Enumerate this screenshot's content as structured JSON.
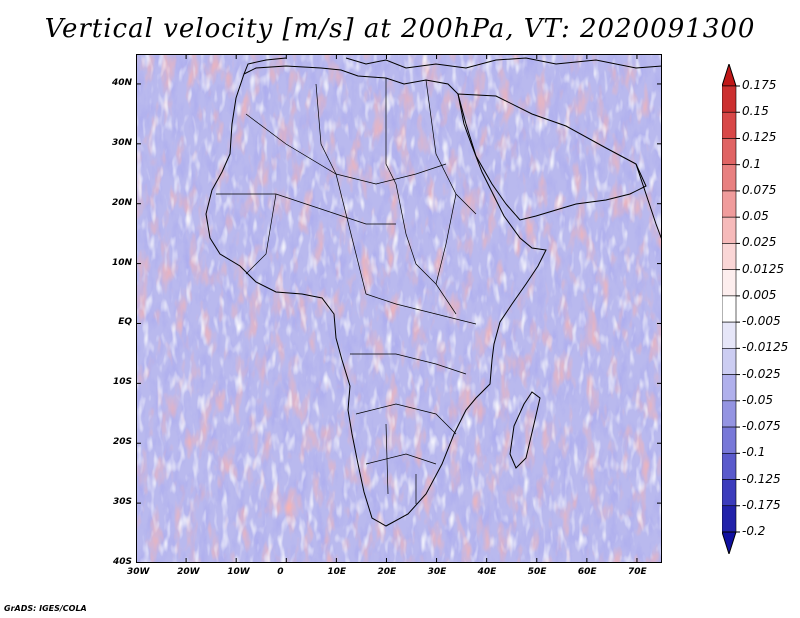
{
  "title": "Vertical velocity [m/s] at 200hPa, VT: 2020091300",
  "credit": "GrADS: IGES/COLA",
  "map": {
    "lon_range": [
      -30,
      75
    ],
    "lat_range": [
      -40,
      45
    ],
    "lat_ticks": [
      {
        "value": 40,
        "label": "40N"
      },
      {
        "value": 30,
        "label": "30N"
      },
      {
        "value": 20,
        "label": "20N"
      },
      {
        "value": 10,
        "label": "10N"
      },
      {
        "value": 0,
        "label": "EQ"
      },
      {
        "value": -10,
        "label": "10S"
      },
      {
        "value": -20,
        "label": "20S"
      },
      {
        "value": -30,
        "label": "30S"
      },
      {
        "value": -40,
        "label": "40S"
      }
    ],
    "lon_ticks": [
      {
        "value": -30,
        "label": "30W"
      },
      {
        "value": -20,
        "label": "20W"
      },
      {
        "value": -10,
        "label": "10W"
      },
      {
        "value": 0,
        "label": "0"
      },
      {
        "value": 10,
        "label": "10E"
      },
      {
        "value": 20,
        "label": "20E"
      },
      {
        "value": 30,
        "label": "30E"
      },
      {
        "value": 40,
        "label": "40E"
      },
      {
        "value": 50,
        "label": "50E"
      },
      {
        "value": 60,
        "label": "60E"
      },
      {
        "value": 70,
        "label": "70E"
      }
    ]
  },
  "colorbar": {
    "labels": [
      "0.175",
      "0.15",
      "0.125",
      "0.1",
      "0.075",
      "0.05",
      "0.025",
      "0.0125",
      "0.005",
      "-0.005",
      "-0.0125",
      "-0.025",
      "-0.05",
      "-0.075",
      "-0.1",
      "-0.125",
      "-0.175",
      "-0.2"
    ],
    "colors": [
      "#c01818",
      "#cc3030",
      "#d84848",
      "#e06464",
      "#e88080",
      "#f09c9c",
      "#f6baba",
      "#fad6d6",
      "#fdeeee",
      "#ffffff",
      "#e6e6f8",
      "#cccdf2",
      "#b0b0ec",
      "#9494e2",
      "#7878d8",
      "#5a5acc",
      "#3c3cbc",
      "#2222aa",
      "#1010a0"
    ]
  }
}
